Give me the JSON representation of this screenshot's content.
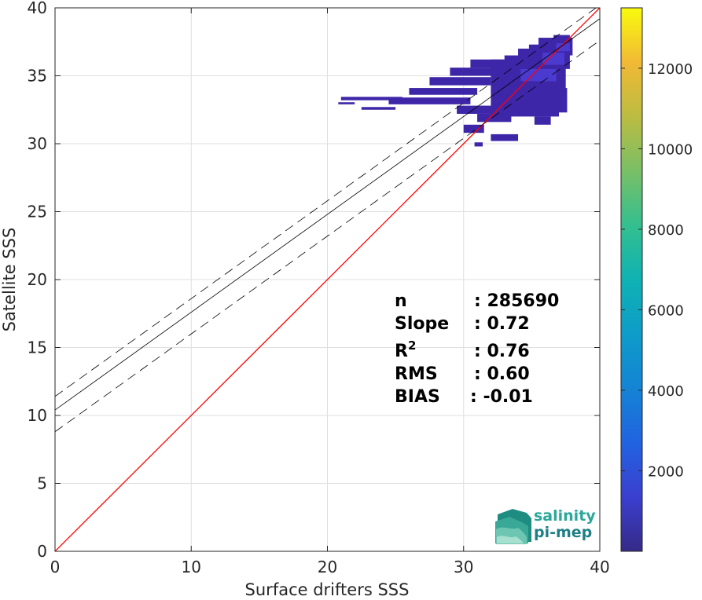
{
  "chart_data": {
    "type": "heatmap",
    "xlabel": "Surface drifters SSS",
    "ylabel": "Satellite SSS",
    "xlim": [
      0,
      40
    ],
    "ylim": [
      0,
      40
    ],
    "x_ticks": [
      "0",
      "10",
      "20",
      "30",
      "40"
    ],
    "y_ticks": [
      "0",
      "5",
      "10",
      "15",
      "20",
      "25",
      "30",
      "35",
      "40"
    ],
    "grid": true,
    "colorbar": {
      "range": [
        0,
        13500
      ],
      "ticks": [
        "2000",
        "4000",
        "6000",
        "8000",
        "10000",
        "12000"
      ],
      "tick_values": [
        2000,
        4000,
        6000,
        8000,
        10000,
        12000
      ],
      "colormap": "parula"
    },
    "lines": [
      {
        "kind": "identity",
        "color": "#ff0000",
        "style": "solid",
        "x": [
          0,
          40
        ],
        "y": [
          0,
          40
        ]
      },
      {
        "kind": "regression",
        "color": "#000000",
        "style": "solid",
        "x": [
          0,
          40
        ],
        "y": [
          10.4,
          39.2
        ]
      },
      {
        "kind": "regression_plus_std",
        "color": "#000000",
        "style": "dashed",
        "x": [
          0,
          40
        ],
        "y": [
          11.4,
          40.2
        ]
      },
      {
        "kind": "regression_minus_std",
        "color": "#000000",
        "style": "dashed",
        "x": [
          0,
          40
        ],
        "y": [
          8.8,
          37.6
        ]
      }
    ],
    "density_cells": [
      {
        "x": 21.0,
        "y": 33.2,
        "w": 4.5,
        "h": 0.25
      },
      {
        "x": 24.5,
        "y": 32.9,
        "w": 6.0,
        "h": 0.5
      },
      {
        "x": 22.5,
        "y": 32.5,
        "w": 2.5,
        "h": 0.2
      },
      {
        "x": 20.8,
        "y": 32.9,
        "w": 1.2,
        "h": 0.15
      },
      {
        "x": 26.0,
        "y": 33.6,
        "w": 5.0,
        "h": 0.5
      },
      {
        "x": 27.5,
        "y": 34.3,
        "w": 4.5,
        "h": 0.6
      },
      {
        "x": 29.0,
        "y": 35.0,
        "w": 3.5,
        "h": 0.6
      },
      {
        "x": 30.5,
        "y": 35.6,
        "w": 2.5,
        "h": 0.6
      },
      {
        "x": 29.5,
        "y": 32.2,
        "w": 3.5,
        "h": 0.6
      },
      {
        "x": 31.0,
        "y": 31.6,
        "w": 2.5,
        "h": 0.6
      },
      {
        "x": 30.0,
        "y": 30.8,
        "w": 1.5,
        "h": 0.6
      },
      {
        "x": 32.0,
        "y": 30.2,
        "w": 2.0,
        "h": 0.5
      },
      {
        "x": 30.8,
        "y": 29.8,
        "w": 0.6,
        "h": 0.3
      },
      {
        "x": 32.0,
        "y": 32.0,
        "w": 5.0,
        "h": 4.2
      },
      {
        "x": 33.0,
        "y": 34.0,
        "w": 4.5,
        "h": 2.5
      },
      {
        "x": 34.0,
        "y": 35.5,
        "w": 3.8,
        "h": 1.5
      },
      {
        "x": 35.5,
        "y": 36.5,
        "w": 2.5,
        "h": 1.3
      },
      {
        "x": 36.6,
        "y": 37.3,
        "w": 1.2,
        "h": 0.7
      },
      {
        "x": 34.8,
        "y": 36.8,
        "w": 1.2,
        "h": 0.5
      },
      {
        "x": 36.2,
        "y": 32.3,
        "w": 1.4,
        "h": 1.8
      },
      {
        "x": 35.2,
        "y": 31.4,
        "w": 1.2,
        "h": 0.6
      },
      {
        "x": 34.5,
        "y": 33.0,
        "w": 2.0,
        "h": 2.0
      }
    ],
    "density_core": [
      {
        "x": 34.2,
        "y": 34.6,
        "w": 2.6,
        "h": 0.9
      },
      {
        "x": 35.8,
        "y": 35.8,
        "w": 1.6,
        "h": 0.9
      },
      {
        "x": 36.8,
        "y": 36.8,
        "w": 1.0,
        "h": 0.6
      }
    ]
  },
  "stats": [
    {
      "label": "n",
      "value": ": 285690"
    },
    {
      "label": "Slope",
      "value": ": 0.72"
    },
    {
      "label": "R",
      "sup": "2",
      "value": ": 0.76"
    },
    {
      "label": "RMS",
      "value": ": 0.60"
    },
    {
      "label": "BIAS",
      "value": ": -0.01"
    }
  ],
  "logo": {
    "line1": "salinity",
    "line2": "pi-mep",
    "color1": "#2aa89a",
    "color2": "#1f7f86"
  }
}
